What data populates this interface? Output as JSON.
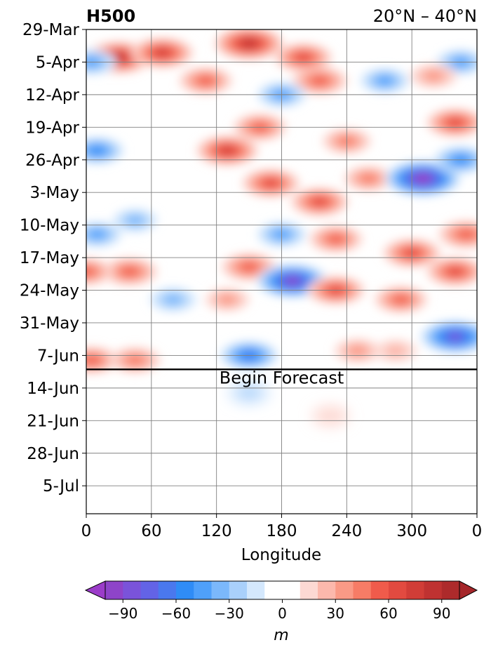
{
  "chart_data": {
    "type": "heatmap",
    "title_left": "H500",
    "title_right": "20°N – 40°N",
    "xlabel": "Longitude",
    "ylabel": "",
    "x_ticks": [
      "0",
      "60",
      "120",
      "180",
      "240",
      "300",
      "0"
    ],
    "y_ticks": [
      "29-Mar",
      "5-Apr",
      "12-Apr",
      "19-Apr",
      "26-Apr",
      "3-May",
      "10-May",
      "17-May",
      "24-May",
      "31-May",
      "7-Jun",
      "14-Jun",
      "21-Jun",
      "28-Jun",
      "5-Jul"
    ],
    "xlim": [
      0,
      360
    ],
    "ylim": [
      "29-Mar",
      "11-Jul"
    ],
    "grid": true,
    "annotation": "Begin Forecast",
    "forecast_start": "10-Jun",
    "colorbar": {
      "label": "m",
      "ticks": [
        "−90",
        "−60",
        "−30",
        "0",
        "30",
        "60",
        "90"
      ],
      "levels": [
        -100,
        -90,
        -80,
        -70,
        -60,
        -50,
        -40,
        -30,
        -20,
        -10,
        10,
        20,
        30,
        40,
        50,
        60,
        70,
        80,
        90,
        100
      ],
      "colors": [
        "#8e44c9",
        "#7a53da",
        "#6363e6",
        "#4a78ee",
        "#2f8cf6",
        "#4fa0fa",
        "#7bb8fb",
        "#a9d0fb",
        "#d4e8fd",
        "#ffffff",
        "#fdd9d3",
        "#fcb8ac",
        "#fa9a86",
        "#f77c66",
        "#f05b4b",
        "#e24a40",
        "#d13d37",
        "#bf3231",
        "#ad2a2b"
      ],
      "extend": "both",
      "extend_low_color": "#9b3cc9",
      "extend_high_color": "#a5262a"
    },
    "anomalies": [
      {
        "lon": 30,
        "date": "4-Apr",
        "value": 80
      },
      {
        "lon": 70,
        "date": "3-Apr",
        "value": 70
      },
      {
        "lon": 150,
        "date": "1-Apr",
        "value": 85
      },
      {
        "lon": 200,
        "date": "4-Apr",
        "value": 60
      },
      {
        "lon": 215,
        "date": "9-Apr",
        "value": 55
      },
      {
        "lon": 110,
        "date": "9-Apr",
        "value": 50
      },
      {
        "lon": 5,
        "date": "5-Apr",
        "value": -40
      },
      {
        "lon": 180,
        "date": "12-Apr",
        "value": -40
      },
      {
        "lon": 275,
        "date": "9-Apr",
        "value": -40
      },
      {
        "lon": 345,
        "date": "5-Apr",
        "value": -40
      },
      {
        "lon": 320,
        "date": "8-Apr",
        "value": 35
      },
      {
        "lon": 340,
        "date": "18-Apr",
        "value": 60
      },
      {
        "lon": 240,
        "date": "22-Apr",
        "value": 40
      },
      {
        "lon": 160,
        "date": "19-Apr",
        "value": 50
      },
      {
        "lon": 130,
        "date": "24-Apr",
        "value": 70
      },
      {
        "lon": 170,
        "date": "1-May",
        "value": 60
      },
      {
        "lon": 215,
        "date": "5-May",
        "value": 60
      },
      {
        "lon": 260,
        "date": "30-Apr",
        "value": 40
      },
      {
        "lon": 10,
        "date": "24-Apr",
        "value": -50
      },
      {
        "lon": 310,
        "date": "30-Apr",
        "value": -100
      },
      {
        "lon": 345,
        "date": "26-Apr",
        "value": -50
      },
      {
        "lon": 350,
        "date": "12-May",
        "value": 55
      },
      {
        "lon": 300,
        "date": "16-May",
        "value": 60
      },
      {
        "lon": 230,
        "date": "13-May",
        "value": 50
      },
      {
        "lon": 40,
        "date": "20-May",
        "value": 55
      },
      {
        "lon": 150,
        "date": "19-May",
        "value": 55
      },
      {
        "lon": 0,
        "date": "20-May",
        "value": 50
      },
      {
        "lon": 190,
        "date": "22-May",
        "value": -90
      },
      {
        "lon": 180,
        "date": "12-May",
        "value": -40
      },
      {
        "lon": 10,
        "date": "12-May",
        "value": -40
      },
      {
        "lon": 45,
        "date": "9-May",
        "value": -30
      },
      {
        "lon": 230,
        "date": "24-May",
        "value": 60
      },
      {
        "lon": 290,
        "date": "26-May",
        "value": 50
      },
      {
        "lon": 340,
        "date": "20-May",
        "value": 60
      },
      {
        "lon": 130,
        "date": "26-May",
        "value": 30
      },
      {
        "lon": 80,
        "date": "26-May",
        "value": -35
      },
      {
        "lon": 340,
        "date": "3-Jun",
        "value": -85
      },
      {
        "lon": 150,
        "date": "7-Jun",
        "value": -60
      },
      {
        "lon": 250,
        "date": "6-Jun",
        "value": 35
      },
      {
        "lon": 5,
        "date": "8-Jun",
        "value": 50
      },
      {
        "lon": 45,
        "date": "8-Jun",
        "value": 45
      },
      {
        "lon": 285,
        "date": "6-Jun",
        "value": 25
      },
      {
        "lon": 150,
        "date": "15-Jun",
        "value": -25
      },
      {
        "lon": 225,
        "date": "20-Jun",
        "value": 12
      }
    ]
  }
}
